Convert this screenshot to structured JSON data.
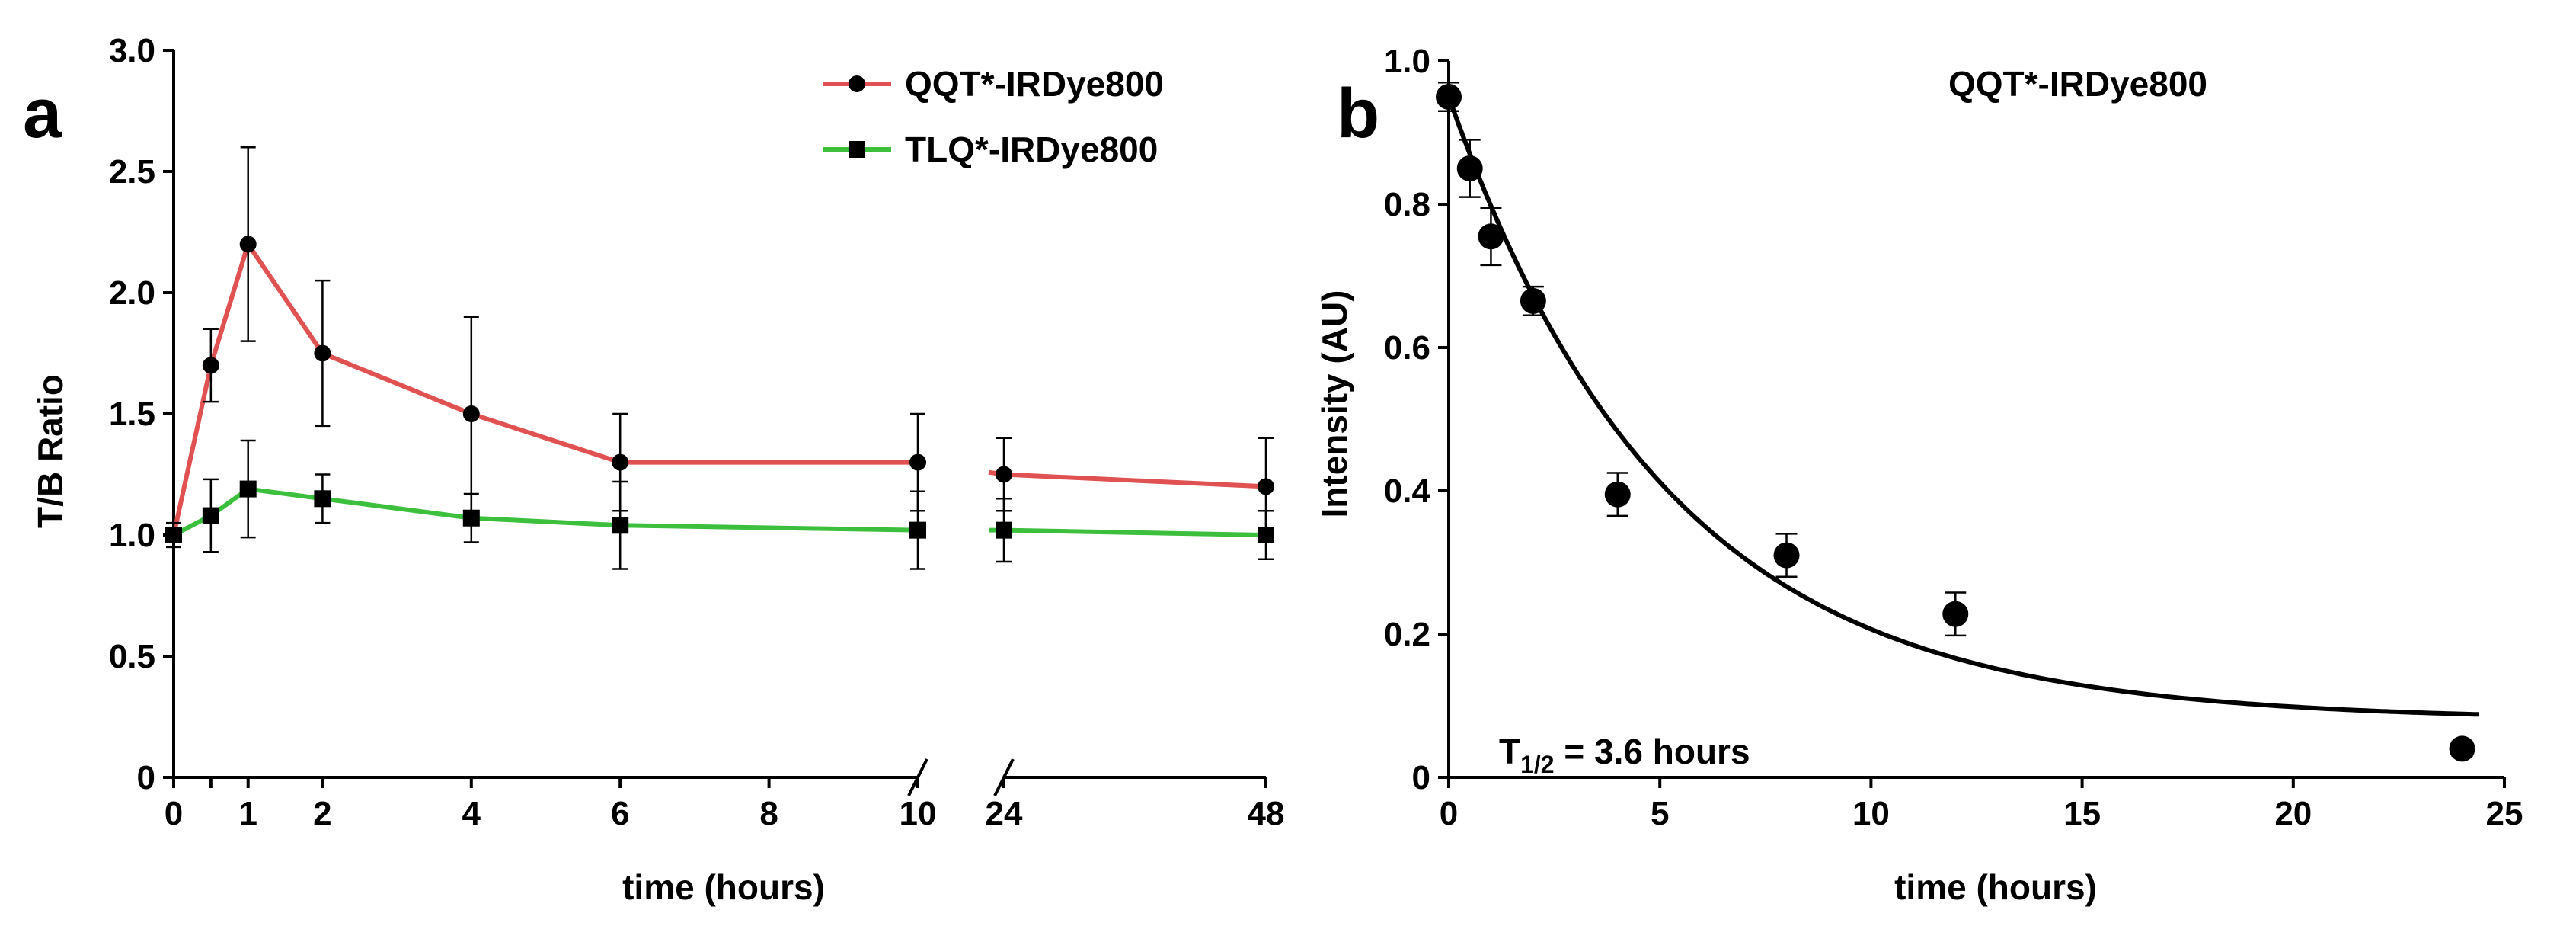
{
  "chart_data": [
    {
      "panel": "a",
      "type": "line",
      "title": "",
      "xlabel": "time (hours)",
      "ylabel": "T/B Ratio",
      "ylim": [
        0,
        3.0
      ],
      "yticks": [
        "0",
        "0.5",
        "1.0",
        "1.5",
        "2.0",
        "2.5",
        "3.0"
      ],
      "xticks": [
        "0",
        "1",
        "2",
        "4",
        "6",
        "8",
        "10",
        "24",
        "48"
      ],
      "x_axis_break": "between 10 and 24",
      "legend_position": "top-right",
      "series": [
        {
          "name": "QQT*-IRDye800",
          "color": "#e05252",
          "marker": "circle",
          "x": [
            0,
            0.5,
            1,
            2,
            4,
            6,
            10,
            24,
            48
          ],
          "values": [
            1.0,
            1.7,
            2.2,
            1.75,
            1.5,
            1.3,
            1.3,
            1.25,
            1.2
          ],
          "error": [
            0.05,
            0.15,
            0.4,
            0.3,
            0.4,
            0.2,
            0.2,
            0.15,
            0.2
          ]
        },
        {
          "name": "TLQ*-IRDye800",
          "color": "#3cbf3c",
          "marker": "square",
          "x": [
            0,
            0.5,
            1,
            2,
            4,
            6,
            10,
            24,
            48
          ],
          "values": [
            1.0,
            1.08,
            1.19,
            1.15,
            1.07,
            1.04,
            1.02,
            1.02,
            1.0
          ],
          "error": [
            0.03,
            0.15,
            0.2,
            0.1,
            0.1,
            0.18,
            0.16,
            0.13,
            0.1
          ]
        }
      ]
    },
    {
      "panel": "b",
      "type": "scatter",
      "title": "QQT*-IRDye800",
      "xlabel": "time (hours)",
      "ylabel": "Intensity (AU)",
      "xlim": [
        0,
        25
      ],
      "ylim": [
        0,
        1.0
      ],
      "xticks": [
        "0",
        "5",
        "10",
        "15",
        "20",
        "25"
      ],
      "yticks": [
        "0",
        "0.2",
        "0.4",
        "0.6",
        "0.8",
        "1.0"
      ],
      "annotation_prefix": "T",
      "annotation_sub": "1/2",
      "annotation_suffix": " = 3.6 hours",
      "fit": {
        "type": "exponential decay",
        "plateau": 0.08,
        "y0": 0.95,
        "half_life": 3.6
      },
      "series": [
        {
          "name": "QQT*-IRDye800",
          "x": [
            0,
            0.5,
            1,
            2,
            4,
            8,
            12,
            24
          ],
          "values": [
            0.95,
            0.85,
            0.755,
            0.665,
            0.395,
            0.31,
            0.228,
            0.04
          ],
          "error": [
            0.02,
            0.04,
            0.04,
            0.02,
            0.03,
            0.03,
            0.03,
            0.01
          ]
        }
      ]
    }
  ]
}
